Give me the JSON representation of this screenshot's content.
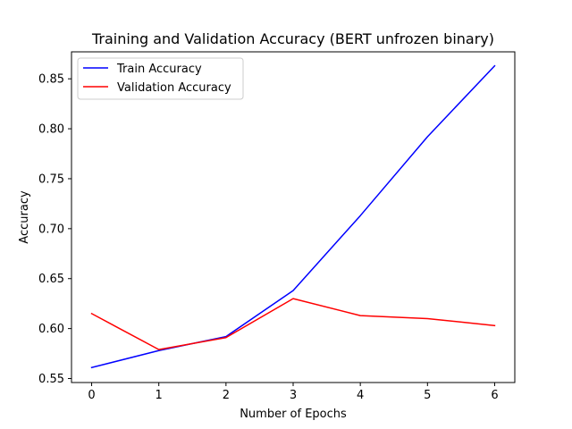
{
  "chart_data": {
    "type": "line",
    "title": "Training and Validation Accuracy (BERT unfrozen binary)",
    "xlabel": "Number of Epochs",
    "ylabel": "Accuracy",
    "x": [
      0,
      1,
      2,
      3,
      4,
      5,
      6
    ],
    "xticks": [
      "0",
      "1",
      "2",
      "3",
      "4",
      "5",
      "6"
    ],
    "yticks": [
      "0.55",
      "0.60",
      "0.65",
      "0.70",
      "0.75",
      "0.80",
      "0.85"
    ],
    "xlim": [
      -0.3,
      6.3
    ],
    "ylim": [
      0.546,
      0.877
    ],
    "grid": false,
    "legend_position": "upper-left",
    "series": [
      {
        "name": "Train Accuracy",
        "color": "#0000ff",
        "values": [
          0.561,
          0.578,
          0.592,
          0.638,
          0.713,
          0.792,
          0.863
        ]
      },
      {
        "name": "Validation Accuracy",
        "color": "#ff0000",
        "values": [
          0.615,
          0.579,
          0.591,
          0.63,
          0.613,
          0.61,
          0.603
        ]
      }
    ]
  }
}
